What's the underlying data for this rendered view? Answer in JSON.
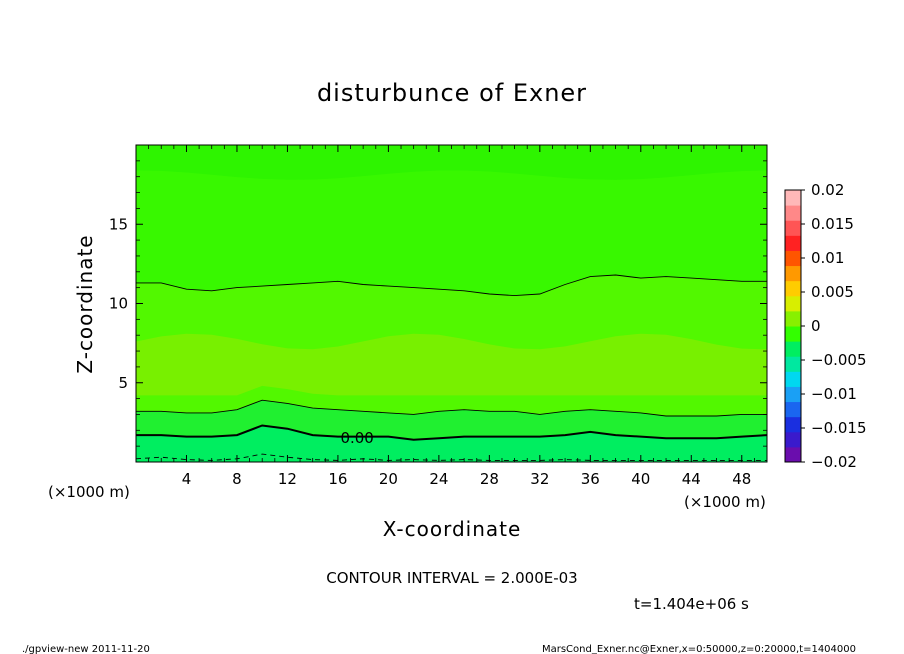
{
  "chart_data": {
    "type": "contour",
    "title": "disturbunce of Exner",
    "xlabel": "X-coordinate",
    "ylabel": "Z-coordinate",
    "x_unit_label": "(×1000 m)",
    "y_unit_label": "(×1000 m)",
    "xlim": [
      0,
      50
    ],
    "ylim": [
      0,
      20
    ],
    "x_ticks": [
      4,
      8,
      12,
      16,
      20,
      24,
      28,
      32,
      36,
      40,
      44,
      48
    ],
    "y_ticks": [
      5,
      10,
      15
    ],
    "contour_interval_text": "CONTOUR INTERVAL = 2.000E-03",
    "contour_label": "0.00",
    "time_text": "t=1.404e+06 s",
    "colorbar": {
      "levels": [
        -0.02,
        -0.015,
        -0.01,
        -0.005,
        0,
        0.005,
        0.01,
        0.015,
        0.02
      ],
      "labels": [
        "0.02",
        "0.015",
        "0.01",
        "0.005",
        "0",
        "−0.005",
        "−0.01",
        "−0.015",
        "−0.02"
      ],
      "colors": [
        "#6a0dad",
        "#3a1acc",
        "#1a2fe0",
        "#1a66f0",
        "#1aa0f5",
        "#00d8f0",
        "#00e8a0",
        "#00ee60",
        "#33ff00",
        "#88f000",
        "#d8ee00",
        "#ffcc00",
        "#ff9900",
        "#ff5500",
        "#ff2222",
        "#ff5555",
        "#ff8888",
        "#ffb8b8"
      ]
    },
    "regions": [
      {
        "name": "upper",
        "fill": "#38f800"
      },
      {
        "name": "mid",
        "fill": "#52f800"
      },
      {
        "name": "lower",
        "fill": "#78f000"
      },
      {
        "name": "near-surface",
        "fill": "#20f030"
      },
      {
        "name": "surface",
        "fill": "#00ee60"
      }
    ],
    "contours": [
      {
        "name": "upper-contour",
        "style": "solid-thin",
        "x": [
          0,
          2,
          4,
          6,
          8,
          10,
          12,
          14,
          16,
          18,
          20,
          22,
          24,
          26,
          28,
          30,
          32,
          34,
          36,
          38,
          40,
          42,
          44,
          46,
          48,
          50
        ],
        "z": [
          11.3,
          11.3,
          10.9,
          10.8,
          11.0,
          11.1,
          11.2,
          11.3,
          11.4,
          11.2,
          11.1,
          11.0,
          10.9,
          10.8,
          10.6,
          10.5,
          10.6,
          11.2,
          11.7,
          11.8,
          11.6,
          11.7,
          11.6,
          11.5,
          11.4,
          11.4
        ]
      },
      {
        "name": "mid-contour",
        "style": "solid-thin",
        "x": [
          0,
          2,
          4,
          6,
          8,
          10,
          12,
          14,
          16,
          18,
          20,
          22,
          24,
          26,
          28,
          30,
          32,
          34,
          36,
          38,
          40,
          42,
          44,
          46,
          48,
          50
        ],
        "z": [
          3.2,
          3.2,
          3.1,
          3.1,
          3.3,
          3.9,
          3.7,
          3.4,
          3.3,
          3.2,
          3.1,
          3.0,
          3.2,
          3.3,
          3.2,
          3.2,
          3.0,
          3.2,
          3.3,
          3.2,
          3.1,
          2.9,
          2.9,
          2.9,
          3.0,
          3.0
        ]
      },
      {
        "name": "zero-contour",
        "style": "solid-thick",
        "x": [
          0,
          2,
          4,
          6,
          8,
          10,
          12,
          14,
          16,
          18,
          20,
          22,
          24,
          26,
          28,
          30,
          32,
          34,
          36,
          38,
          40,
          42,
          44,
          46,
          48,
          50
        ],
        "z": [
          1.7,
          1.7,
          1.6,
          1.6,
          1.7,
          2.3,
          2.1,
          1.7,
          1.6,
          1.6,
          1.6,
          1.4,
          1.5,
          1.6,
          1.6,
          1.6,
          1.6,
          1.7,
          1.9,
          1.7,
          1.6,
          1.5,
          1.5,
          1.5,
          1.6,
          1.7
        ]
      },
      {
        "name": "negative-contour",
        "style": "dashed",
        "x": [
          0,
          2,
          4,
          6,
          8,
          10,
          12,
          14,
          16,
          18,
          20,
          22,
          24,
          26,
          28,
          30,
          32,
          34,
          36,
          38,
          40,
          42,
          44,
          46,
          48,
          50
        ],
        "z": [
          0.2,
          0.3,
          0.15,
          0.1,
          0.2,
          0.5,
          0.3,
          0.15,
          0.1,
          0.2,
          0.1,
          0.15,
          0.1,
          0.15,
          0.1,
          0.1,
          0.1,
          0.15,
          0.1,
          0.1,
          0.1,
          0.1,
          0.1,
          0.1,
          0.1,
          0.1
        ]
      }
    ]
  },
  "footer": {
    "left": "./gpview-new  2011-11-20",
    "right": "MarsCond_Exner.nc@Exner,x=0:50000,z=0:20000,t=1404000"
  }
}
